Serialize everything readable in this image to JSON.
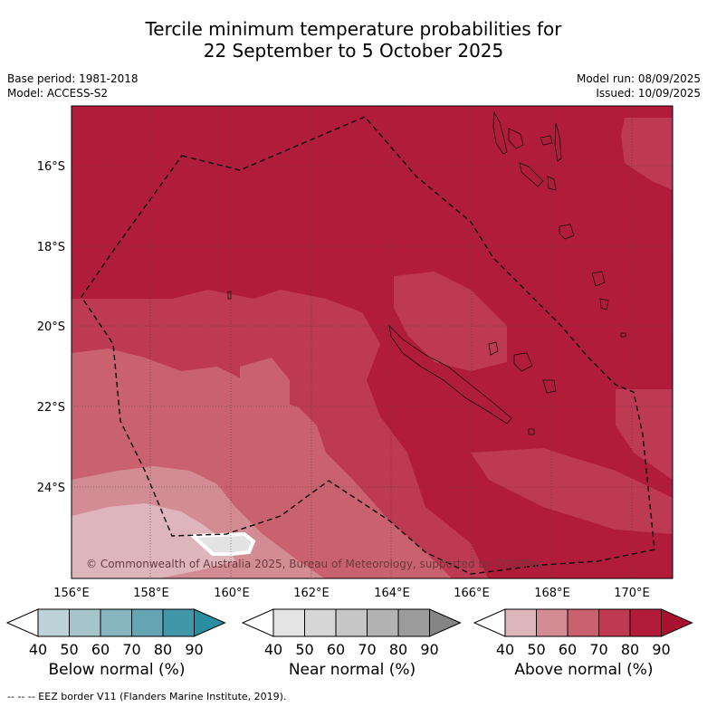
{
  "title": {
    "line1": "Tercile minimum temperature probabilities for",
    "line2": "22 September to 5 October 2025"
  },
  "meta": {
    "base_period": "Base period: 1981-2018",
    "model": "Model: ACCESS-S2",
    "model_run": "Model run: 08/09/2025",
    "issued": "Issued: 10/09/2025"
  },
  "map": {
    "lon_range": [
      156,
      171
    ],
    "lat_range": [
      -26.0,
      -14.6
    ],
    "lon_ticks": [
      "156°E",
      "158°E",
      "160°E",
      "162°E",
      "164°E",
      "166°E",
      "168°E",
      "170°E"
    ],
    "lat_ticks": [
      "16°S",
      "18°S",
      "20°S",
      "22°S",
      "24°S"
    ],
    "copyright": "© Commonwealth of Australia 2025, Bureau of Meteorology, supported by COSPPac",
    "colors": {
      "above_90": "#b11c3a",
      "above_80": "#be3a52",
      "above_70": "#c9626e",
      "above_60": "#d48c94",
      "above_50": "#ddb5ba",
      "near_40": "#e3e3e3"
    }
  },
  "colorbars": {
    "ticks": [
      "40",
      "50",
      "60",
      "70",
      "80",
      "90"
    ],
    "below": {
      "label": "Below normal (%)",
      "colors": [
        "#ffffff",
        "#bed3d9",
        "#a5c5cb",
        "#86b5c0",
        "#64a4b3",
        "#4196a8",
        "#2a8ea2"
      ]
    },
    "near": {
      "label": "Near normal (%)",
      "colors": [
        "#ffffff",
        "#e4e4e4",
        "#d6d6d6",
        "#c6c6c6",
        "#b3b3b3",
        "#9c9c9c",
        "#858585"
      ]
    },
    "above": {
      "label": "Above normal (%)",
      "colors": [
        "#ffffff",
        "#ddb5ba",
        "#d48c94",
        "#c9626e",
        "#be3a52",
        "#b11c3a",
        "#a8122f"
      ]
    }
  },
  "footer": "--  --  -- EEZ border V11 (Flanders Marine Institute, 2019)."
}
